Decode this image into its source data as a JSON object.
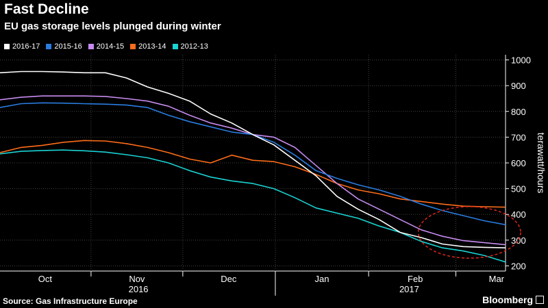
{
  "header": {
    "title": "Fast Decline",
    "subtitle": "EU gas storage levels plunged during winter"
  },
  "footer": {
    "source": "Source: Gas Infrastructure Europe",
    "brand": "Bloomberg"
  },
  "colors": {
    "background": "#000000",
    "grid": "#444444",
    "circle": "#e0261c"
  },
  "chart_data": {
    "type": "line",
    "title": "Fast Decline",
    "subtitle": "EU gas storage levels plunged during winter",
    "ylabel": "terawatt/hours",
    "ylim": [
      180,
      1020
    ],
    "yticks": [
      200,
      300,
      400,
      500,
      600,
      700,
      800,
      900,
      1000
    ],
    "xlim": [
      0,
      168
    ],
    "month_ticks": [
      {
        "label": "Oct",
        "x": 15
      },
      {
        "label": "Nov",
        "x": 45.5
      },
      {
        "label": "Dec",
        "x": 76
      },
      {
        "label": "Jan",
        "x": 107
      },
      {
        "label": "Feb",
        "x": 138
      },
      {
        "label": "Mar",
        "x": 165
      }
    ],
    "year_labels": [
      {
        "label": "2016",
        "x": 46
      },
      {
        "label": "2017",
        "x": 136
      }
    ],
    "grid": true,
    "legend_position": "top-left",
    "annotation": {
      "type": "dashed-circle",
      "x_center": 156,
      "y_center": 330,
      "x_radius": 17,
      "y_radius": 100
    },
    "x": [
      0,
      7,
      14,
      21,
      28,
      35,
      42,
      49,
      56,
      63,
      70,
      77,
      84,
      91,
      98,
      105,
      112,
      119,
      126,
      133,
      140,
      147,
      154,
      161,
      168
    ],
    "series": [
      {
        "name": "2016-17",
        "color": "#ffffff",
        "values": [
          950,
          955,
          955,
          953,
          950,
          950,
          930,
          895,
          870,
          840,
          790,
          755,
          710,
          670,
          610,
          550,
          470,
          420,
          380,
          330,
          310,
          285,
          275,
          272,
          270
        ]
      },
      {
        "name": "2015-16",
        "color": "#2a7de1",
        "values": [
          815,
          830,
          833,
          832,
          830,
          828,
          825,
          815,
          785,
          760,
          740,
          720,
          710,
          680,
          630,
          570,
          540,
          515,
          495,
          470,
          440,
          415,
          395,
          375,
          360
        ]
      },
      {
        "name": "2014-15",
        "color": "#c78bf0",
        "values": [
          845,
          855,
          860,
          860,
          860,
          858,
          850,
          840,
          820,
          785,
          755,
          735,
          710,
          700,
          660,
          590,
          520,
          460,
          420,
          380,
          340,
          315,
          298,
          290,
          282
        ]
      },
      {
        "name": "2013-14",
        "color": "#ff6d1a",
        "values": [
          640,
          660,
          668,
          680,
          687,
          685,
          675,
          660,
          640,
          615,
          600,
          630,
          610,
          605,
          585,
          555,
          520,
          495,
          480,
          460,
          450,
          440,
          432,
          430,
          428
        ]
      },
      {
        "name": "2012-13",
        "color": "#1ad3d3",
        "values": [
          635,
          645,
          648,
          650,
          647,
          642,
          632,
          620,
          600,
          570,
          545,
          530,
          520,
          500,
          465,
          425,
          405,
          385,
          355,
          330,
          295,
          270,
          258,
          240,
          215
        ]
      }
    ]
  }
}
